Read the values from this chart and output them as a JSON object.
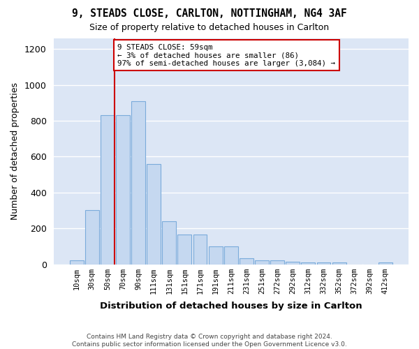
{
  "title_line1": "9, STEADS CLOSE, CARLTON, NOTTINGHAM, NG4 3AF",
  "title_line2": "Size of property relative to detached houses in Carlton",
  "xlabel": "Distribution of detached houses by size in Carlton",
  "ylabel": "Number of detached properties",
  "footnote": "Contains HM Land Registry data © Crown copyright and database right 2024.\nContains public sector information licensed under the Open Government Licence v3.0.",
  "bar_labels": [
    "10sqm",
    "30sqm",
    "50sqm",
    "70sqm",
    "90sqm",
    "111sqm",
    "131sqm",
    "151sqm",
    "171sqm",
    "191sqm",
    "211sqm",
    "231sqm",
    "251sqm",
    "272sqm",
    "292sqm",
    "312sqm",
    "332sqm",
    "352sqm",
    "372sqm",
    "392sqm",
    "412sqm"
  ],
  "bar_values": [
    20,
    300,
    830,
    830,
    910,
    560,
    240,
    165,
    165,
    100,
    100,
    35,
    20,
    22,
    15,
    10,
    10,
    10,
    0,
    0,
    10
  ],
  "bar_color": "#c5d8f0",
  "bar_edge_color": "#7aabdb",
  "figure_background": "#ffffff",
  "axes_background": "#dce6f5",
  "grid_color": "#ffffff",
  "annotation_text": "9 STEADS CLOSE: 59sqm\n← 3% of detached houses are smaller (86)\n97% of semi-detached houses are larger (3,084) →",
  "annotation_box_color": "#ffffff",
  "annotation_box_edge": "#cc0000",
  "red_line_color": "#cc0000",
  "ylim": [
    0,
    1260
  ],
  "yticks": [
    0,
    200,
    400,
    600,
    800,
    1000,
    1200
  ]
}
